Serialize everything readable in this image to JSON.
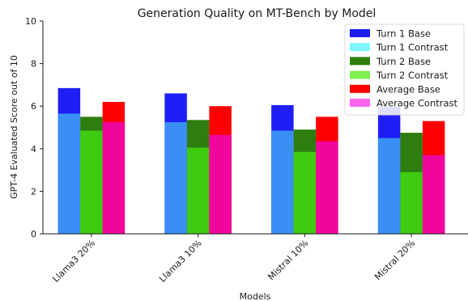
{
  "chart_data": {
    "type": "bar",
    "title": "Generation Quality on MT-Bench by Model",
    "xlabel": "Models",
    "ylabel": "GPT-4 Evaluated Score out of 10",
    "ylim": [
      0,
      10
    ],
    "yticks": [
      "0",
      "2",
      "4",
      "6",
      "8",
      "10"
    ],
    "categories": [
      "Llama3 20%",
      "Llama3 10%",
      "Mistral 10%",
      "Mistral 20%"
    ],
    "groups": [
      {
        "name": "Turn 1",
        "base_series": "Turn 1 Base",
        "contrast_series": "Turn 1 Contrast",
        "base": [
          6.85,
          6.6,
          6.05,
          5.95
        ],
        "contrast": [
          5.65,
          5.25,
          4.85,
          4.5
        ]
      },
      {
        "name": "Turn 2",
        "base_series": "Turn 2 Base",
        "contrast_series": "Turn 2 Contrast",
        "base": [
          5.5,
          5.35,
          4.9,
          4.75
        ],
        "contrast": [
          4.85,
          4.05,
          3.85,
          2.9
        ]
      },
      {
        "name": "Average",
        "base_series": "Average Base",
        "contrast_series": "Average Contrast",
        "base": [
          6.2,
          6.0,
          5.5,
          5.3
        ],
        "contrast": [
          5.25,
          4.65,
          4.35,
          3.7
        ]
      }
    ],
    "legend": {
      "placement": "top-right",
      "entries": [
        {
          "label": "Turn 1 Base",
          "color": "#1f1ff5"
        },
        {
          "label": "Turn 1 Contrast",
          "color": "#7ff5ff"
        },
        {
          "label": "Turn 2 Base",
          "color": "#2d7d0f"
        },
        {
          "label": "Turn 2 Contrast",
          "color": "#7ff050"
        },
        {
          "label": "Average Base",
          "color": "#ff0000"
        },
        {
          "label": "Average Contrast",
          "color": "#ff66ee"
        }
      ]
    },
    "rendered_colors": {
      "Turn 1": {
        "base": "#1f1ff5",
        "contrast": "#3a8ff7"
      },
      "Turn 2": {
        "base": "#2d7d0f",
        "contrast": "#3fcb10"
      },
      "Average": {
        "base": "#ff0000",
        "contrast": "#f0069c"
      }
    },
    "grid": false
  }
}
